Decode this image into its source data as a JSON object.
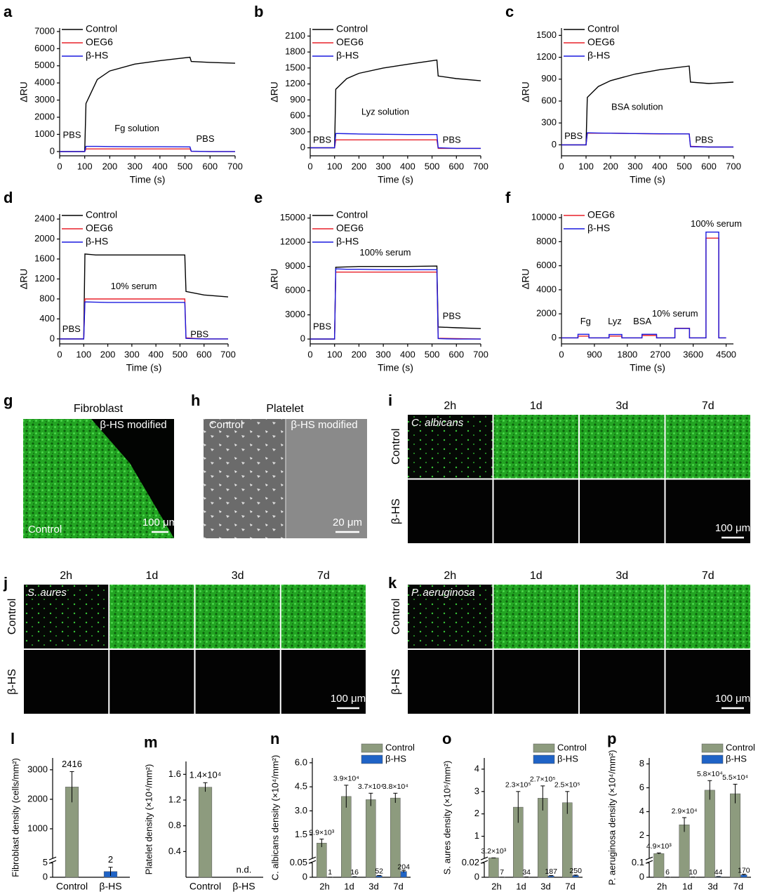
{
  "chart_data": [
    {
      "type": "line",
      "label": "a",
      "xlabel": "Time (s)",
      "ylabel": "ΔRU",
      "x": [
        0,
        100,
        105,
        150,
        200,
        300,
        400,
        520,
        525,
        600,
        700
      ],
      "series": [
        {
          "name": "Control",
          "color": "#000000",
          "values": [
            0,
            0,
            2800,
            4200,
            4700,
            5100,
            5300,
            5500,
            5250,
            5200,
            5150
          ]
        },
        {
          "name": "OEG6",
          "color": "#e8202a",
          "values": [
            0,
            0,
            150,
            150,
            150,
            150,
            150,
            150,
            10,
            0,
            0
          ]
        },
        {
          "name": "β-HS",
          "color": "#1a1adf",
          "values": [
            0,
            0,
            300,
            300,
            290,
            280,
            280,
            270,
            20,
            0,
            0
          ]
        }
      ],
      "annotations": [
        "PBS",
        "Fg solution",
        "PBS"
      ],
      "xlim": [
        0,
        700
      ],
      "xticks": [
        0,
        100,
        200,
        300,
        400,
        500,
        600,
        700
      ],
      "ylim": [
        -250,
        7200
      ],
      "yticks": [
        0,
        1000,
        2000,
        3000,
        4000,
        5000,
        6000,
        7000
      ],
      "legend": "upper left"
    },
    {
      "type": "line",
      "label": "b",
      "xlabel": "Time (s)",
      "ylabel": "ΔRU",
      "x": [
        0,
        100,
        105,
        150,
        200,
        300,
        400,
        520,
        525,
        600,
        700
      ],
      "series": [
        {
          "name": "Control",
          "color": "#000000",
          "values": [
            0,
            0,
            1100,
            1300,
            1400,
            1500,
            1570,
            1650,
            1350,
            1300,
            1260
          ]
        },
        {
          "name": "OEG6",
          "color": "#e8202a",
          "values": [
            0,
            0,
            150,
            150,
            150,
            150,
            150,
            150,
            -10,
            -10,
            -10
          ]
        },
        {
          "name": "β-HS",
          "color": "#1a1adf",
          "values": [
            0,
            0,
            270,
            265,
            260,
            255,
            250,
            250,
            0,
            -10,
            -10
          ]
        }
      ],
      "annotations": [
        "PBS",
        "Lyz solution",
        "PBS"
      ],
      "xlim": [
        0,
        700
      ],
      "xticks": [
        0,
        100,
        200,
        300,
        400,
        500,
        600,
        700
      ],
      "ylim": [
        -150,
        2250
      ],
      "yticks": [
        0,
        300,
        600,
        900,
        1200,
        1500,
        1800,
        2100
      ],
      "legend": "upper left"
    },
    {
      "type": "line",
      "label": "c",
      "xlabel": "Time (s)",
      "ylabel": "ΔRU",
      "x": [
        0,
        100,
        105,
        150,
        200,
        300,
        400,
        520,
        525,
        600,
        700
      ],
      "series": [
        {
          "name": "Control",
          "color": "#000000",
          "values": [
            0,
            0,
            650,
            800,
            880,
            970,
            1030,
            1080,
            860,
            840,
            860
          ]
        },
        {
          "name": "OEG6",
          "color": "#e8202a",
          "values": [
            0,
            0,
            160,
            160,
            160,
            155,
            150,
            150,
            -20,
            -30,
            -30
          ]
        },
        {
          "name": "β-HS",
          "color": "#1a1adf",
          "values": [
            0,
            0,
            165,
            162,
            160,
            155,
            152,
            150,
            -25,
            -30,
            -30
          ]
        }
      ],
      "annotations": [
        "PBS",
        "BSA solution",
        "PBS"
      ],
      "xlim": [
        0,
        700
      ],
      "xticks": [
        0,
        100,
        200,
        300,
        400,
        500,
        600,
        700
      ],
      "ylim": [
        -150,
        1600
      ],
      "yticks": [
        0,
        300,
        600,
        900,
        1200,
        1500
      ],
      "legend": "upper left"
    },
    {
      "type": "line",
      "label": "d",
      "xlabel": "Time (s)",
      "ylabel": "ΔRU",
      "x": [
        0,
        100,
        105,
        150,
        200,
        300,
        400,
        520,
        525,
        600,
        700
      ],
      "series": [
        {
          "name": "Control",
          "color": "#000000",
          "values": [
            0,
            0,
            1700,
            1680,
            1680,
            1680,
            1680,
            1680,
            950,
            880,
            840
          ]
        },
        {
          "name": "OEG6",
          "color": "#e8202a",
          "values": [
            0,
            0,
            800,
            800,
            800,
            800,
            800,
            800,
            20,
            0,
            0
          ]
        },
        {
          "name": "β-HS",
          "color": "#1a1adf",
          "values": [
            0,
            0,
            740,
            735,
            730,
            730,
            730,
            730,
            10,
            0,
            0
          ]
        }
      ],
      "annotations": [
        "PBS",
        "10% serum",
        "PBS"
      ],
      "xlim": [
        0,
        700
      ],
      "xticks": [
        0,
        100,
        200,
        300,
        400,
        500,
        600,
        700
      ],
      "ylim": [
        -100,
        2500
      ],
      "yticks": [
        0,
        400,
        800,
        1200,
        1600,
        2000,
        2400
      ],
      "legend": "upper left"
    },
    {
      "type": "line",
      "label": "e",
      "xlabel": "Time (s)",
      "ylabel": "ΔRU",
      "x": [
        0,
        100,
        105,
        150,
        200,
        300,
        400,
        520,
        525,
        600,
        700
      ],
      "series": [
        {
          "name": "Control",
          "color": "#000000",
          "values": [
            0,
            0,
            8900,
            8950,
            9000,
            9000,
            9000,
            9050,
            1500,
            1400,
            1300
          ]
        },
        {
          "name": "OEG6",
          "color": "#e8202a",
          "values": [
            0,
            0,
            8300,
            8300,
            8300,
            8300,
            8300,
            8300,
            100,
            50,
            0
          ]
        },
        {
          "name": "β-HS",
          "color": "#1a1adf",
          "values": [
            0,
            0,
            8700,
            8650,
            8650,
            8600,
            8600,
            8600,
            50,
            0,
            0
          ]
        }
      ],
      "annotations": [
        "PBS",
        "100% serum",
        "PBS"
      ],
      "xlim": [
        0,
        700
      ],
      "xticks": [
        0,
        100,
        200,
        300,
        400,
        500,
        600,
        700
      ],
      "ylim": [
        -600,
        15500
      ],
      "yticks": [
        0,
        3000,
        6000,
        9000,
        12000,
        15000
      ],
      "legend": "upper left"
    },
    {
      "type": "line",
      "label": "f",
      "xlabel": "Time (s)",
      "ylabel": "ΔRU",
      "x": [
        0,
        450,
        450,
        750,
        750,
        1300,
        1300,
        1650,
        1650,
        2200,
        2200,
        2600,
        2600,
        3100,
        3100,
        3500,
        3500,
        3950,
        3950,
        4300,
        4300,
        4500
      ],
      "series": [
        {
          "name": "OEG6",
          "color": "#e8202a",
          "values": [
            0,
            0,
            150,
            150,
            0,
            0,
            150,
            150,
            0,
            0,
            200,
            200,
            0,
            0,
            800,
            800,
            0,
            0,
            8300,
            8300,
            0,
            0
          ]
        },
        {
          "name": "β-HS",
          "color": "#1a1adf",
          "values": [
            0,
            0,
            300,
            300,
            0,
            0,
            280,
            280,
            0,
            0,
            300,
            300,
            0,
            0,
            780,
            780,
            0,
            0,
            8800,
            8800,
            0,
            0
          ]
        }
      ],
      "annotations": [
        "Fg",
        "Lyz",
        "BSA",
        "10% serum",
        "100% serum"
      ],
      "xlim": [
        0,
        4700
      ],
      "xticks": [
        0,
        900,
        1800,
        2700,
        3600,
        4500
      ],
      "ylim": [
        -500,
        10300
      ],
      "yticks": [
        0,
        2000,
        4000,
        6000,
        8000,
        10000
      ],
      "legend": "upper left"
    },
    {
      "type": "bar",
      "label": "l",
      "ylabel": "Fibroblast density (cells/mm²)",
      "categories": [
        "Control",
        "β-HS"
      ],
      "values": [
        2416,
        2
      ],
      "errors": [
        520,
        1.5
      ],
      "colors": [
        "#8d9b7e",
        "#1f63c6"
      ],
      "ylim": [
        0,
        3400
      ],
      "yticks": [
        0,
        5,
        1000,
        2000,
        3000
      ],
      "axis_break": true
    },
    {
      "type": "bar",
      "label": "m",
      "ylabel": "Platelet density (×10⁴/mm²)",
      "categories": [
        "Control",
        "β-HS"
      ],
      "values": [
        1.4,
        null
      ],
      "errors": [
        0.07,
        null
      ],
      "value_labels": [
        "1.4×10⁴",
        "n.d."
      ],
      "colors": [
        "#8d9b7e",
        "#1f63c6"
      ],
      "ylim": [
        0,
        1.8
      ],
      "yticks": [
        0.4,
        0.8,
        1.2,
        1.6
      ],
      "axis_break": false
    },
    {
      "type": "bar",
      "label": "n",
      "ylabel": "C. albicans density (×10⁴/mm²)",
      "categories": [
        "2h",
        "1d",
        "3d",
        "7d"
      ],
      "series": [
        {
          "name": "Control",
          "color": "#8d9b7e",
          "values": [
            0.99,
            3.9,
            3.7,
            3.8
          ],
          "errors": [
            0.25,
            0.7,
            0.4,
            0.3
          ],
          "value_labels": [
            "9.9×10³",
            "3.9×10⁴",
            "3.7×10⁴",
            "3.8×10⁴"
          ]
        },
        {
          "name": "β-HS",
          "color": "#1f63c6",
          "values": [
            0.0001,
            0.0016,
            0.0052,
            0.0204
          ],
          "errors": [
            0.0001,
            0.0005,
            0.001,
            0.004
          ],
          "value_labels": [
            "1",
            "16",
            "52",
            "204"
          ]
        }
      ],
      "ylim": [
        0,
        6.3
      ],
      "yticks": [
        0,
        0.05,
        1.5,
        {
          "value": 3,
          "label": "3.0"
        },
        4.5,
        {
          "value": 6,
          "label": "6.0"
        }
      ],
      "axis_break": true,
      "legend": "upper right"
    },
    {
      "type": "bar",
      "label": "o",
      "ylabel": "S. aures density (×10⁵/mm²)",
      "categories": [
        "2h",
        "1d",
        "3d",
        "7d"
      ],
      "series": [
        {
          "name": "Control",
          "color": "#8d9b7e",
          "values": [
            0.032,
            2.3,
            2.7,
            2.5
          ],
          "errors": [
            0.002,
            0.7,
            0.55,
            0.5
          ],
          "value_labels": [
            "3.2×10³",
            "2.3×10⁵",
            "2.7×10⁵",
            "2.5×10⁵"
          ]
        },
        {
          "name": "β-HS",
          "color": "#1f63c6",
          "values": [
            7e-05,
            0.00034,
            0.00187,
            0.0025
          ],
          "errors": [
            3e-05,
            0.0001,
            0.0005,
            0.0006
          ],
          "value_labels": [
            "7",
            "34",
            "187",
            "250"
          ]
        }
      ],
      "ylim": [
        0,
        4.5
      ],
      "yticks": [
        0,
        0.02,
        1,
        2,
        3,
        4
      ],
      "axis_break": true,
      "legend": "upper right"
    },
    {
      "type": "bar",
      "label": "p",
      "ylabel": "P. aeruginosa density (×10⁴/mm²)",
      "categories": [
        "2h",
        "1d",
        "3d",
        "7d"
      ],
      "series": [
        {
          "name": "Control",
          "color": "#8d9b7e",
          "values": [
            0.49,
            2.9,
            5.8,
            5.5
          ],
          "errors": [
            0.05,
            0.6,
            0.8,
            0.8
          ],
          "value_labels": [
            "4.9×10³",
            "2.9×10⁴",
            "5.8×10⁴",
            "5.5×10⁴"
          ]
        },
        {
          "name": "β-HS",
          "color": "#1f63c6",
          "values": [
            0.0006,
            0.001,
            0.0044,
            0.017
          ],
          "errors": [
            0.0002,
            0.0003,
            0.001,
            0.004
          ],
          "value_labels": [
            "6",
            "10",
            "44",
            "170"
          ]
        }
      ],
      "ylim": [
        0,
        8.5
      ],
      "yticks": [
        0,
        0.1,
        2,
        4,
        6,
        8
      ],
      "axis_break": true,
      "legend": "upper right"
    }
  ],
  "image_panels": [
    {
      "label": "g",
      "title": "Fibroblast",
      "texts": [
        "β-HS modified",
        "Control"
      ],
      "scale_bar": "100 μm"
    },
    {
      "label": "h",
      "title": "Platelet",
      "texts": [
        "Control",
        "β-HS modified"
      ],
      "scale_bar": "20 μm"
    },
    {
      "label": "i",
      "columns": [
        "2h",
        "1d",
        "3d",
        "7d"
      ],
      "rows": [
        "Control",
        "β-HS"
      ],
      "organism": "C. albicans",
      "scale_bar": "100 μm"
    },
    {
      "label": "j",
      "columns": [
        "2h",
        "1d",
        "3d",
        "7d"
      ],
      "rows": [
        "Control",
        "β-HS"
      ],
      "organism": "S. aures",
      "scale_bar": "100 μm"
    },
    {
      "label": "k",
      "columns": [
        "2h",
        "1d",
        "3d",
        "7d"
      ],
      "rows": [
        "Control",
        "β-HS"
      ],
      "organism": "P. aeruginosa",
      "scale_bar": "100 μm"
    }
  ]
}
